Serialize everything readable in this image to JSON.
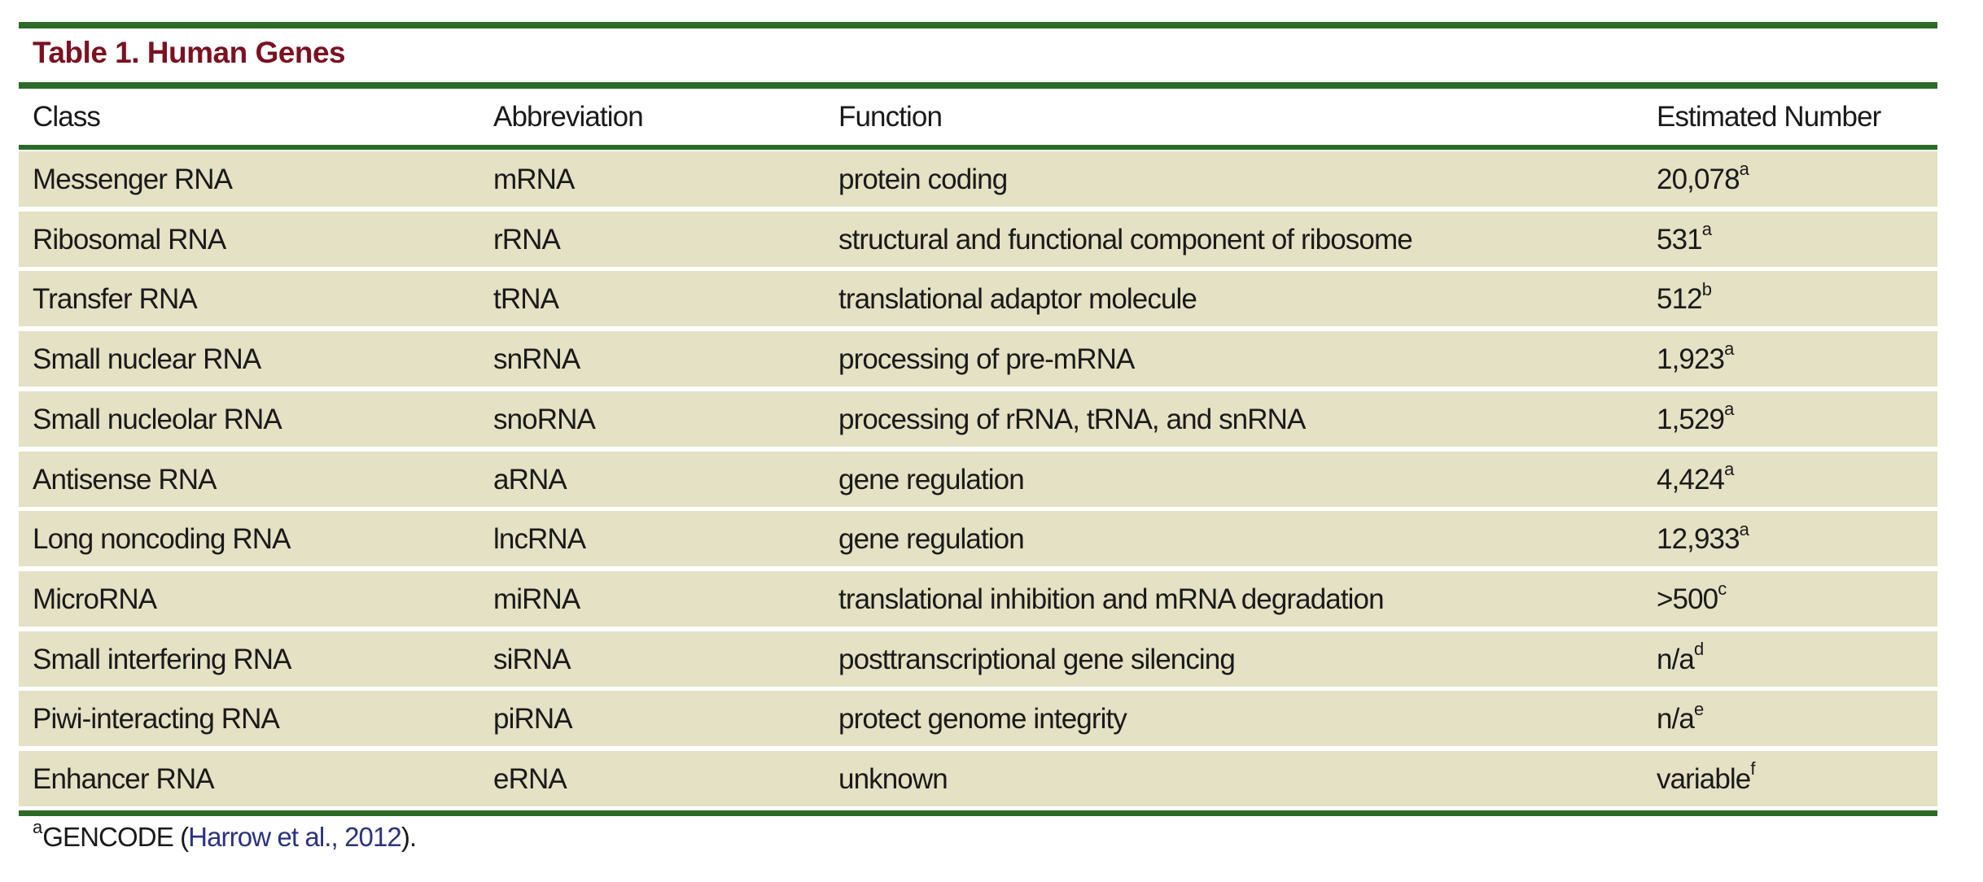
{
  "title": "Table 1.  Human Genes",
  "colors": {
    "rule": "#2b6b27",
    "title": "#7b1121",
    "row_bg": "#e4e1c4",
    "link": "#2b3380"
  },
  "headers": [
    "Class",
    "Abbreviation",
    "Function",
    "Estimated Number"
  ],
  "rows": [
    {
      "class": "Messenger RNA",
      "abbr": "mRNA",
      "function": "protein coding",
      "number": "20,078",
      "note": "a"
    },
    {
      "class": "Ribosomal RNA",
      "abbr": "rRNA",
      "function": "structural and functional component of ribosome",
      "number": "531",
      "note": "a"
    },
    {
      "class": "Transfer RNA",
      "abbr": "tRNA",
      "function": "translational adaptor molecule",
      "number": "512",
      "note": "b"
    },
    {
      "class": "Small nuclear RNA",
      "abbr": "snRNA",
      "function": "processing of pre-mRNA",
      "number": "1,923",
      "note": "a"
    },
    {
      "class": "Small nucleolar RNA",
      "abbr": "snoRNA",
      "function": "processing of rRNA, tRNA, and snRNA",
      "number": "1,529",
      "note": "a"
    },
    {
      "class": "Antisense RNA",
      "abbr": "aRNA",
      "function": "gene regulation",
      "number": "4,424",
      "note": "a"
    },
    {
      "class": "Long noncoding RNA",
      "abbr": "lncRNA",
      "function": "gene regulation",
      "number": "12,933",
      "note": "a"
    },
    {
      "class": "MicroRNA",
      "abbr": "miRNA",
      "function": "translational inhibition and mRNA degradation",
      "number": ">500",
      "note": "c"
    },
    {
      "class": "Small interfering RNA",
      "abbr": "siRNA",
      "function": "posttranscriptional gene silencing",
      "number": "n/a",
      "note": "d"
    },
    {
      "class": "Piwi-interacting RNA",
      "abbr": "piRNA",
      "function": "protect genome integrity",
      "number": "n/a",
      "note": "e"
    },
    {
      "class": "Enhancer RNA",
      "abbr": "eRNA",
      "function": "unknown",
      "number": "variable",
      "note": "f"
    }
  ],
  "footnote": {
    "mark": "a",
    "text": "GENCODE (",
    "link": "Harrow et al., 2012",
    "tail": ")."
  }
}
